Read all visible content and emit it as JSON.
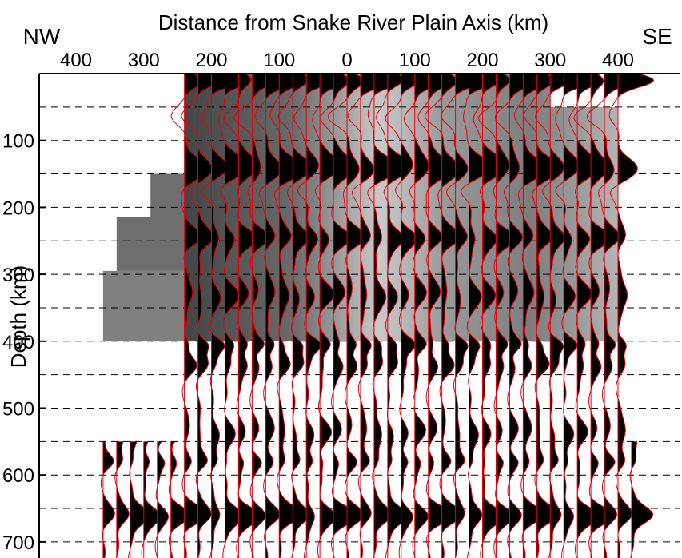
{
  "chart_data": {
    "type": "line",
    "title": "Distance from Snake River Plain Axis (km)",
    "xlabel": "Distance from Snake River Plain Axis (km)",
    "ylabel": "Depth (km)",
    "left_label": "NW",
    "right_label": "SE",
    "x_ticks": [
      {
        "value": -400,
        "label": "400"
      },
      {
        "value": -300,
        "label": "300"
      },
      {
        "value": -200,
        "label": "200"
      },
      {
        "value": -100,
        "label": "100"
      },
      {
        "value": 0,
        "label": "0"
      },
      {
        "value": 100,
        "label": "100"
      },
      {
        "value": 200,
        "label": "200"
      },
      {
        "value": 300,
        "label": "300"
      },
      {
        "value": 400,
        "label": "400"
      }
    ],
    "y_ticks": [
      {
        "value": 100,
        "label": "100"
      },
      {
        "value": 200,
        "label": "200"
      },
      {
        "value": 300,
        "label": "300"
      },
      {
        "value": 400,
        "label": "400"
      },
      {
        "value": 500,
        "label": "500"
      },
      {
        "value": 600,
        "label": "600"
      },
      {
        "value": 700,
        "label": "700"
      }
    ],
    "xlim": [
      -450,
      450
    ],
    "ylim": [
      0,
      725
    ],
    "y_inverted": true,
    "dashed_depths": [
      50,
      100,
      150,
      200,
      250,
      300,
      350,
      400,
      450,
      500,
      550,
      600,
      650,
      700
    ],
    "trace_positions": [
      -360,
      -340,
      -320,
      -300,
      -280,
      -260,
      -240,
      -220,
      -200,
      -180,
      -160,
      -140,
      -120,
      -100,
      -80,
      -60,
      -40,
      -20,
      0,
      20,
      40,
      60,
      80,
      100,
      120,
      140,
      160,
      180,
      200,
      220,
      240,
      260,
      280,
      300,
      320,
      340,
      360,
      380,
      400,
      420
    ],
    "shallow_band": {
      "depth_top": 0,
      "depth_bottom": 400,
      "x_from": -240,
      "x_to": 400
    },
    "mid_band": {
      "depth_top": 400,
      "depth_bottom": 550,
      "x_from": -240,
      "x_to": 400
    },
    "deep_band": {
      "depth_top": 550,
      "depth_bottom": 725,
      "x_from": -360,
      "x_to": 420
    },
    "phases": [
      {
        "depth": 10,
        "amplitude": 1.6
      },
      {
        "depth": 65,
        "amplitude": -0.8
      },
      {
        "depth": 140,
        "amplitude": 1.2
      },
      {
        "depth": 175,
        "amplitude": -0.4
      },
      {
        "depth": 245,
        "amplitude": 0.9
      },
      {
        "depth": 330,
        "amplitude": 0.6
      },
      {
        "depth": 405,
        "amplitude": 0.6
      },
      {
        "depth": 435,
        "amplitude": 0.5
      },
      {
        "depth": 535,
        "amplitude": 0.45
      },
      {
        "depth": 580,
        "amplitude": 0.4
      },
      {
        "depth": 660,
        "amplitude": 1.1
      }
    ],
    "grid": "dashed horizontal",
    "colors": {
      "trace": "#e8000b",
      "fill": "#000000",
      "background_dark": "#3a3a3a",
      "background_light": "#d6d6d6"
    }
  }
}
